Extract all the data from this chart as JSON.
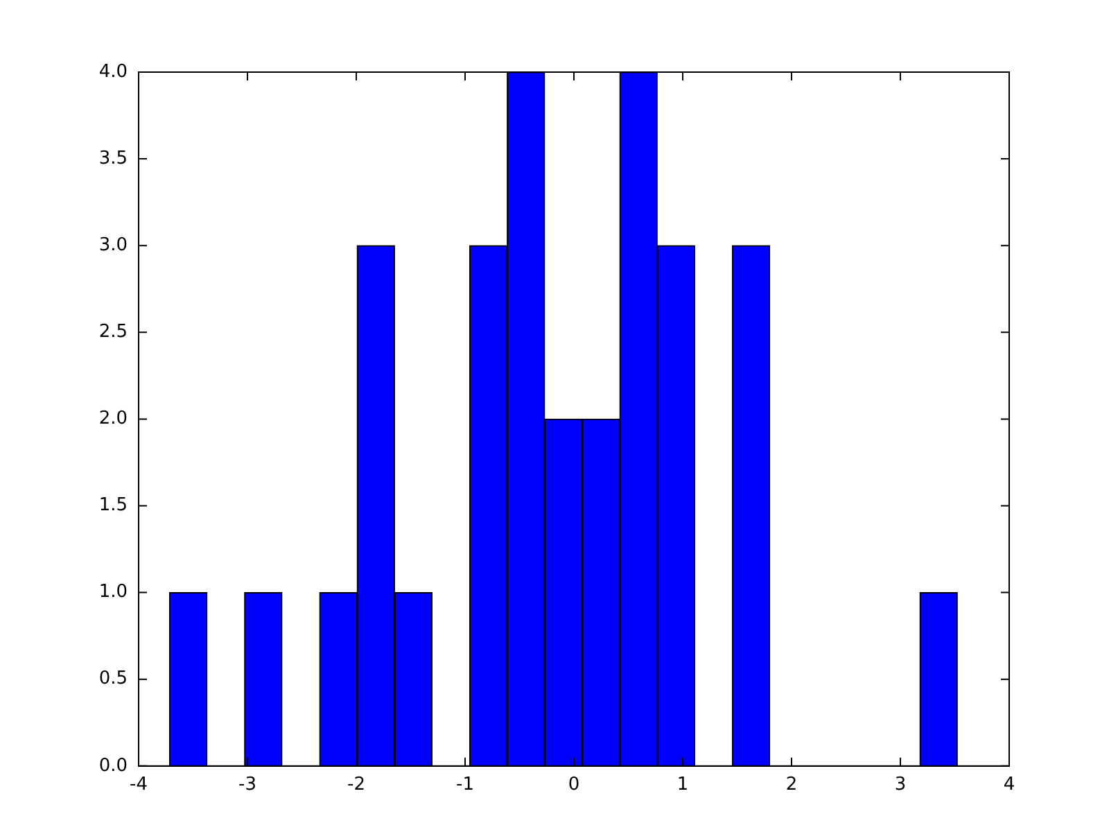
{
  "chart_data": {
    "type": "histogram",
    "bins": [
      -3.716,
      -3.371,
      -3.027,
      -2.682,
      -2.337,
      -1.992,
      -1.648,
      -1.303,
      -0.958,
      -0.613,
      -0.269,
      0.076,
      0.421,
      0.766,
      1.11,
      1.455,
      1.8,
      2.145,
      2.489,
      2.834,
      3.179,
      3.524
    ],
    "values": [
      1,
      0,
      1,
      0,
      1,
      3,
      1,
      0,
      3,
      4,
      2,
      2,
      4,
      3,
      0,
      3,
      0,
      0,
      0,
      0,
      1
    ],
    "color": "#0000ff",
    "xlim": [
      -4,
      4
    ],
    "xticks": [
      -4,
      -3,
      -2,
      -1,
      0,
      1,
      2,
      3,
      4
    ],
    "ylim": [
      0,
      4
    ],
    "yticks": [
      {
        "value": 0,
        "label": "0.0"
      },
      {
        "value": 0.5,
        "label": "0.5"
      },
      {
        "value": 1,
        "label": "1.0"
      },
      {
        "value": 1.5,
        "label": "1.5"
      },
      {
        "value": 2,
        "label": "2.0"
      },
      {
        "value": 2.5,
        "label": "2.5"
      },
      {
        "value": 3,
        "label": "3.0"
      },
      {
        "value": 3.5,
        "label": "3.5"
      },
      {
        "value": 4,
        "label": "4.0"
      }
    ],
    "grid": false,
    "legend": false
  }
}
